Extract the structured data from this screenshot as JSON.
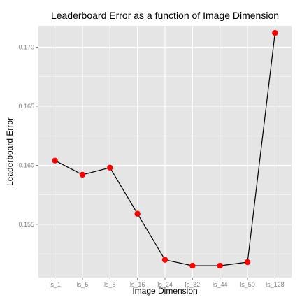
{
  "chart_data": {
    "type": "line",
    "title": "Leaderboard Error as a function of Image Dimension",
    "xlabel": "Image Dimension",
    "ylabel": "Leaderboard Error",
    "categories": [
      "ls_1",
      "ls_5",
      "ls_8",
      "ls_16",
      "ls_24",
      "ls_32",
      "ls_44",
      "ls_50",
      "ls_128"
    ],
    "values": [
      0.1604,
      0.1592,
      0.1598,
      0.1559,
      0.152,
      0.1515,
      0.1515,
      0.1518,
      0.1712
    ],
    "ylim": [
      0.1505,
      0.1718
    ],
    "yticks": [
      "0.155",
      "0.160",
      "0.165",
      "0.170"
    ],
    "grid": true,
    "panel_color": "#e5e5e5",
    "grid_color": "#ffffff",
    "line_color": "#000000",
    "point_color": "#ff0000"
  }
}
